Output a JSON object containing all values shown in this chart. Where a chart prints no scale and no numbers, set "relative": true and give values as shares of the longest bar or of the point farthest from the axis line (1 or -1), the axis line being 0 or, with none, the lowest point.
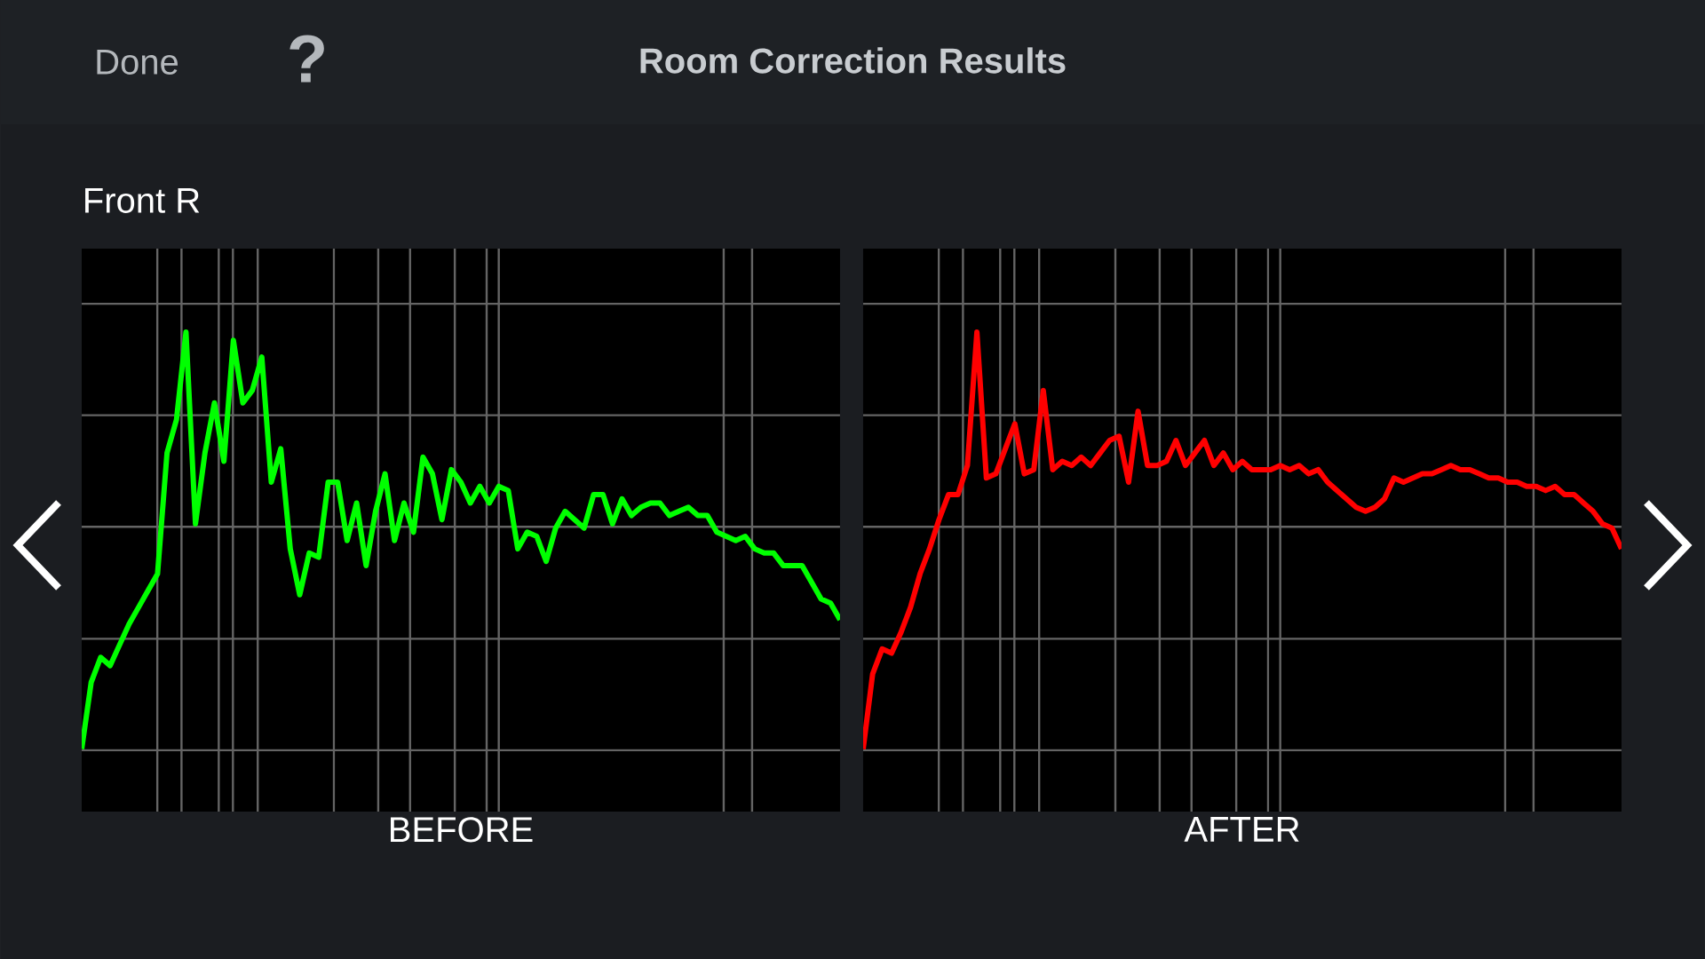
{
  "chart_data": [
    {
      "type": "line",
      "title": "Room Correction Results",
      "subtitle": "Front R",
      "annotations": [
        "Done",
        "?"
      ],
      "xlabel": "BEFORE",
      "relative": true,
      "grid": true,
      "color": "#00ff00",
      "categories": [
        null,
        null,
        null,
        null,
        null,
        null,
        null,
        null,
        null,
        null,
        null,
        null,
        null,
        null,
        null,
        null,
        null,
        null,
        null,
        null,
        null,
        null,
        null,
        null,
        null,
        null,
        null,
        null,
        null,
        null,
        null,
        null,
        null,
        null,
        null,
        null,
        null,
        null,
        null,
        null,
        null,
        null,
        null,
        null,
        null,
        null,
        null,
        null,
        null,
        null,
        null,
        null,
        null,
        null,
        null,
        null,
        null,
        null,
        null,
        null,
        null,
        null,
        null,
        null,
        null,
        null,
        null,
        null,
        null,
        null,
        null,
        null,
        null,
        null,
        null,
        null,
        null,
        null,
        null,
        null,
        null
      ],
      "values": [
        0,
        0.16,
        0.22,
        0.2,
        0.25,
        0.3,
        0.34,
        0.38,
        0.42,
        0.71,
        0.79,
        1,
        0.54,
        0.71,
        0.83,
        0.69,
        0.98,
        0.83,
        0.86,
        0.94,
        0.64,
        0.72,
        0.48,
        0.37,
        0.47,
        0.46,
        0.64,
        0.64,
        0.5,
        0.59,
        0.44,
        0.57,
        0.66,
        0.5,
        0.59,
        0.52,
        0.7,
        0.66,
        0.55,
        0.67,
        0.64,
        0.59,
        0.63,
        0.59,
        0.63,
        0.62,
        0.48,
        0.52,
        0.51,
        0.45,
        0.53,
        0.57,
        0.55,
        0.53,
        0.61,
        0.61,
        0.54,
        0.6,
        0.56,
        0.58,
        0.59,
        0.59,
        0.56,
        0.57,
        0.58,
        0.56,
        0.56,
        0.52,
        0.51,
        0.5,
        0.51,
        0.48,
        0.47,
        0.47,
        0.44,
        0.44,
        0.44,
        0.4,
        0.36,
        0.35,
        0.31
      ]
    },
    {
      "type": "line",
      "xlabel": "AFTER",
      "relative": true,
      "grid": true,
      "color": "#ff0000",
      "categories": [
        null,
        null,
        null,
        null,
        null,
        null,
        null,
        null,
        null,
        null,
        null,
        null,
        null,
        null,
        null,
        null,
        null,
        null,
        null,
        null,
        null,
        null,
        null,
        null,
        null,
        null,
        null,
        null,
        null,
        null,
        null,
        null,
        null,
        null,
        null,
        null,
        null,
        null,
        null,
        null,
        null,
        null,
        null,
        null,
        null,
        null,
        null,
        null,
        null,
        null,
        null,
        null,
        null,
        null,
        null,
        null,
        null,
        null,
        null,
        null,
        null,
        null,
        null,
        null,
        null,
        null,
        null,
        null,
        null,
        null,
        null,
        null,
        null,
        null,
        null,
        null,
        null,
        null,
        null,
        null,
        null
      ],
      "values": [
        0,
        0.18,
        0.24,
        0.23,
        0.28,
        0.34,
        0.42,
        0.48,
        0.55,
        0.61,
        0.61,
        0.68,
        1,
        0.65,
        0.66,
        0.72,
        0.78,
        0.66,
        0.67,
        0.86,
        0.67,
        0.69,
        0.68,
        0.7,
        0.68,
        0.71,
        0.74,
        0.75,
        0.64,
        0.81,
        0.68,
        0.68,
        0.69,
        0.74,
        0.68,
        0.71,
        0.74,
        0.68,
        0.71,
        0.67,
        0.69,
        0.67,
        0.67,
        0.67,
        0.68,
        0.67,
        0.68,
        0.66,
        0.67,
        0.64,
        0.62,
        0.6,
        0.58,
        0.57,
        0.58,
        0.6,
        0.65,
        0.64,
        0.65,
        0.66,
        0.66,
        0.67,
        0.68,
        0.67,
        0.67,
        0.66,
        0.65,
        0.65,
        0.64,
        0.64,
        0.63,
        0.63,
        0.62,
        0.63,
        0.61,
        0.61,
        0.59,
        0.57,
        0.54,
        0.53,
        0.48
      ]
    }
  ]
}
